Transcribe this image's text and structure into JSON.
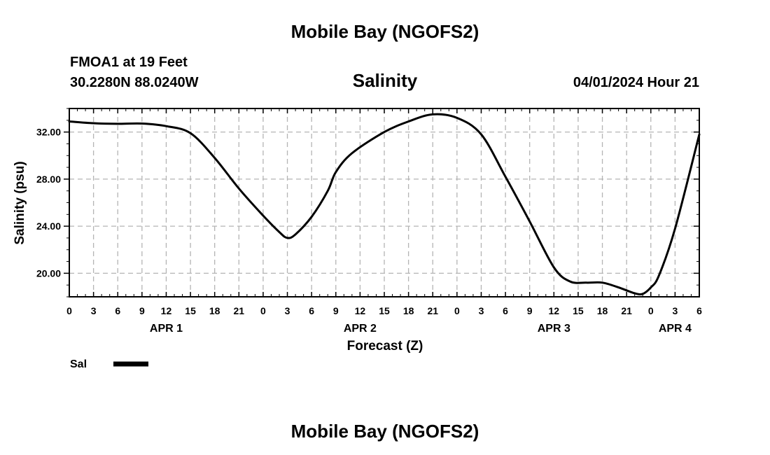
{
  "page": {
    "title_top": "Mobile Bay (NGOFS2)",
    "title_bottom": "Mobile Bay (NGOFS2)",
    "station_line": "FMOA1 at 19 Feet",
    "coords_line": "30.2280N  88.0240W",
    "datetime_line": "04/01/2024 Hour 21"
  },
  "colors": {
    "line": "#000000",
    "grid": "#b4b4b4",
    "axis": "#000000",
    "background": "#ffffff"
  },
  "chart_data": {
    "type": "line",
    "title": "Salinity",
    "xlabel": "Forecast (Z)",
    "ylabel": "Salinity (psu)",
    "x_unit": "hours from APR 1 00Z",
    "xlim": [
      0,
      78
    ],
    "ylim": [
      18,
      34
    ],
    "grid": true,
    "x_ticks": [
      {
        "hour": 0,
        "label": "0"
      },
      {
        "hour": 3,
        "label": "3"
      },
      {
        "hour": 6,
        "label": "6"
      },
      {
        "hour": 9,
        "label": "9"
      },
      {
        "hour": 12,
        "label": "12"
      },
      {
        "hour": 15,
        "label": "15"
      },
      {
        "hour": 18,
        "label": "18"
      },
      {
        "hour": 21,
        "label": "21"
      },
      {
        "hour": 24,
        "label": "0"
      },
      {
        "hour": 27,
        "label": "3"
      },
      {
        "hour": 30,
        "label": "6"
      },
      {
        "hour": 33,
        "label": "9"
      },
      {
        "hour": 36,
        "label": "12"
      },
      {
        "hour": 39,
        "label": "15"
      },
      {
        "hour": 42,
        "label": "18"
      },
      {
        "hour": 45,
        "label": "21"
      },
      {
        "hour": 48,
        "label": "0"
      },
      {
        "hour": 51,
        "label": "3"
      },
      {
        "hour": 54,
        "label": "6"
      },
      {
        "hour": 57,
        "label": "9"
      },
      {
        "hour": 60,
        "label": "12"
      },
      {
        "hour": 63,
        "label": "15"
      },
      {
        "hour": 66,
        "label": "18"
      },
      {
        "hour": 69,
        "label": "21"
      },
      {
        "hour": 72,
        "label": "0"
      },
      {
        "hour": 75,
        "label": "3"
      },
      {
        "hour": 78,
        "label": "6"
      }
    ],
    "date_labels": [
      {
        "hour": 12,
        "label": "APR 1"
      },
      {
        "hour": 36,
        "label": "APR 2"
      },
      {
        "hour": 60,
        "label": "APR 3"
      },
      {
        "hour": 75,
        "label": "APR 4"
      }
    ],
    "y_ticks": [
      {
        "value": 20,
        "label": "20.00"
      },
      {
        "value": 24,
        "label": "24.00"
      },
      {
        "value": 28,
        "label": "28.00"
      },
      {
        "value": 32,
        "label": "32.00"
      }
    ],
    "series": [
      {
        "name": "Sal",
        "points": [
          [
            0,
            32.9
          ],
          [
            3,
            32.75
          ],
          [
            6,
            32.7
          ],
          [
            9,
            32.72
          ],
          [
            12,
            32.5
          ],
          [
            15,
            31.9
          ],
          [
            18,
            29.8
          ],
          [
            21,
            27.2
          ],
          [
            24,
            24.9
          ],
          [
            26,
            23.5
          ],
          [
            27,
            23.0
          ],
          [
            28,
            23.3
          ],
          [
            30,
            24.8
          ],
          [
            32,
            27.0
          ],
          [
            33,
            28.6
          ],
          [
            35,
            30.2
          ],
          [
            39,
            32.0
          ],
          [
            42,
            32.9
          ],
          [
            45,
            33.5
          ],
          [
            48,
            33.2
          ],
          [
            51,
            31.8
          ],
          [
            54,
            28.2
          ],
          [
            57,
            24.4
          ],
          [
            60,
            20.5
          ],
          [
            62,
            19.3
          ],
          [
            64,
            19.2
          ],
          [
            66,
            19.2
          ],
          [
            68,
            18.8
          ],
          [
            70,
            18.3
          ],
          [
            71,
            18.25
          ],
          [
            72,
            18.8
          ],
          [
            73,
            19.8
          ],
          [
            75,
            23.8
          ],
          [
            78,
            31.8
          ]
        ]
      }
    ],
    "legend": [
      {
        "label": "Sal"
      }
    ]
  }
}
